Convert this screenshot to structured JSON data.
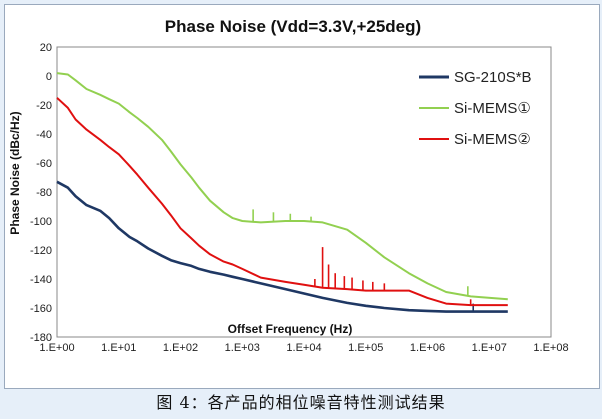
{
  "chart_data": {
    "type": "line",
    "title": "Phase Noise (Vdd=3.3V,+25deg)",
    "xlabel": "Offset Frequency (Hz)",
    "ylabel": "Phase Noise (dBc/Hz)",
    "xscale": "log",
    "xlim": [
      1,
      100000000
    ],
    "ylim": [
      -180,
      20
    ],
    "x_ticks": [
      "1.E+00",
      "1.E+01",
      "1.E+02",
      "1.E+03",
      "1.E+04",
      "1.E+05",
      "1.E+06",
      "1.E+07",
      "1.E+08"
    ],
    "y_ticks": [
      20,
      0,
      -20,
      -40,
      -60,
      -80,
      -100,
      -120,
      -140,
      -160,
      -180
    ],
    "grid": true,
    "legend_position": "top-right",
    "series": [
      {
        "name": "SG-210S*B",
        "color": "#1f3864",
        "x": [
          1,
          1.5,
          2,
          3,
          5,
          7,
          10,
          15,
          20,
          30,
          50,
          70,
          100,
          150,
          200,
          300,
          500,
          700,
          1000,
          2000,
          5000,
          10000,
          20000,
          50000,
          100000,
          200000,
          500000,
          1000000,
          2000000,
          5000000,
          20000000
        ],
        "y": [
          -73,
          -77,
          -83,
          -89,
          -93,
          -98,
          -105,
          -111,
          -114,
          -119,
          -124,
          -127,
          -129,
          -131,
          -133,
          -135,
          -137,
          -138.5,
          -140,
          -143,
          -147,
          -150,
          -153,
          -156.5,
          -158.5,
          -160,
          -161.5,
          -162,
          -162.5,
          -162.5,
          -162.5
        ]
      },
      {
        "name": "Si-MEMS①",
        "color": "#92d050",
        "x": [
          1,
          1.5,
          2,
          3,
          5,
          7,
          10,
          15,
          20,
          30,
          50,
          70,
          100,
          150,
          200,
          300,
          500,
          700,
          1000,
          2000,
          5000,
          10000,
          20000,
          50000,
          100000,
          200000,
          500000,
          1000000,
          2000000,
          5000000,
          20000000
        ],
        "y": [
          2,
          1,
          -3,
          -9,
          -13,
          -16,
          -19,
          -25,
          -29,
          -35,
          -44,
          -52,
          -61,
          -70,
          -77,
          -86,
          -94,
          -98,
          -100,
          -101,
          -100,
          -100,
          -101,
          -106,
          -115,
          -125,
          -136,
          -143,
          -149,
          -152,
          -154
        ]
      },
      {
        "name": "Si-MEMS②",
        "color": "#e01010",
        "x": [
          1,
          1.5,
          2,
          3,
          5,
          7,
          10,
          15,
          20,
          30,
          50,
          70,
          100,
          150,
          200,
          300,
          500,
          700,
          1000,
          2000,
          5000,
          10000,
          20000,
          50000,
          100000,
          200000,
          500000,
          1000000,
          2000000,
          5000000,
          20000000
        ],
        "y": [
          -15,
          -22,
          -30,
          -37,
          -44,
          -49,
          -54,
          -62,
          -68,
          -77,
          -88,
          -96,
          -105,
          -112,
          -117,
          -123,
          -128,
          -130,
          -133,
          -139,
          -142,
          -144,
          -146,
          -147,
          -148,
          -148,
          -148,
          -153,
          -157,
          -158,
          -158
        ]
      }
    ],
    "spurs": [
      {
        "series": "Si-MEMS①",
        "x": 1500,
        "y": -92
      },
      {
        "series": "Si-MEMS①",
        "x": 3200,
        "y": -94
      },
      {
        "series": "Si-MEMS①",
        "x": 6000,
        "y": -95
      },
      {
        "series": "Si-MEMS①",
        "x": 13000,
        "y": -97
      },
      {
        "series": "Si-MEMS①",
        "x": 4500000,
        "y": -145
      },
      {
        "series": "Si-MEMS②",
        "x": 15000,
        "y": -140
      },
      {
        "series": "Si-MEMS②",
        "x": 20000,
        "y": -118
      },
      {
        "series": "Si-MEMS②",
        "x": 25000,
        "y": -130
      },
      {
        "series": "Si-MEMS②",
        "x": 32000,
        "y": -136
      },
      {
        "series": "Si-MEMS②",
        "x": 45000,
        "y": -138
      },
      {
        "series": "Si-MEMS②",
        "x": 60000,
        "y": -139
      },
      {
        "series": "Si-MEMS②",
        "x": 90000,
        "y": -141
      },
      {
        "series": "Si-MEMS②",
        "x": 130000,
        "y": -142
      },
      {
        "series": "Si-MEMS②",
        "x": 200000,
        "y": -143
      },
      {
        "series": "Si-MEMS②",
        "x": 5000000,
        "y": -154
      },
      {
        "series": "SG-210S*B",
        "x": 5500000,
        "y": -157
      }
    ]
  },
  "caption": "图 4：各产品的相位噪音特性测试结果"
}
